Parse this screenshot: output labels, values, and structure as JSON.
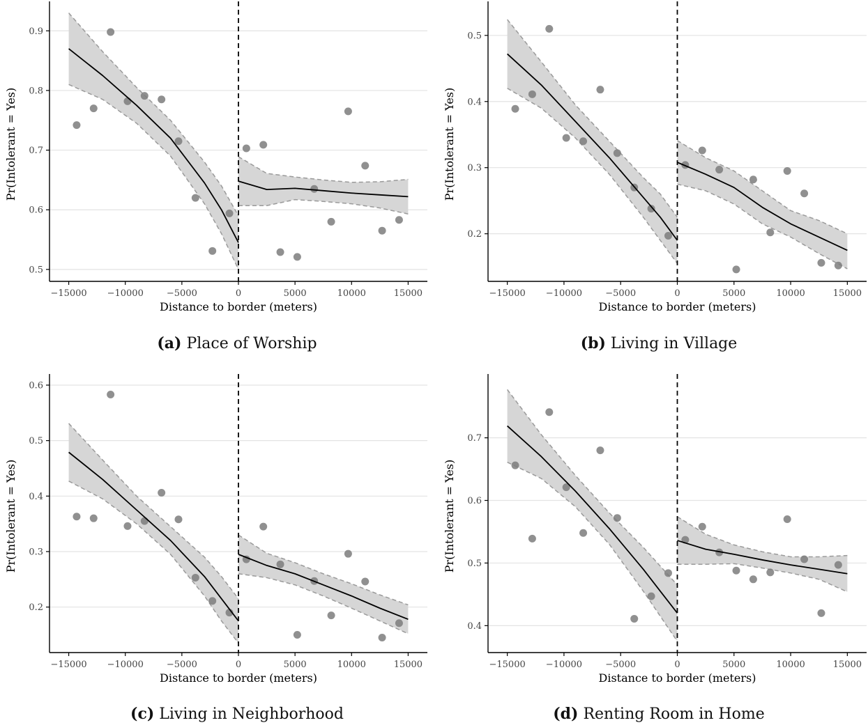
{
  "chart_data": [
    {
      "type": "scatter",
      "panel_label": "(a)",
      "caption": "Place of Worship",
      "xlabel": "Distance to border (meters)",
      "ylabel": "Pr(Intolerant = Yes)",
      "xlim": [
        -16700,
        16700
      ],
      "ylim": [
        0.48,
        0.94
      ],
      "xticks": [
        -15000,
        -10000,
        -5000,
        0,
        5000,
        10000,
        15000
      ],
      "yticks": [
        0.5,
        0.6,
        0.7,
        0.8,
        0.9
      ],
      "ytick_labels": [
        "0.5",
        "0.6",
        "0.7",
        "0.8",
        "0.9"
      ],
      "cutoff": 0,
      "points": [
        [
          -14300,
          0.742
        ],
        [
          -12800,
          0.77
        ],
        [
          -11300,
          0.898
        ],
        [
          -9800,
          0.782
        ],
        [
          -8300,
          0.791
        ],
        [
          -6800,
          0.785
        ],
        [
          -5300,
          0.715
        ],
        [
          -3800,
          0.62
        ],
        [
          -2300,
          0.531
        ],
        [
          -800,
          0.594
        ],
        [
          700,
          0.703
        ],
        [
          2200,
          0.709
        ],
        [
          3700,
          0.529
        ],
        [
          5200,
          0.521
        ],
        [
          6700,
          0.635
        ],
        [
          8200,
          0.58
        ],
        [
          9700,
          0.765
        ],
        [
          11200,
          0.674
        ],
        [
          12700,
          0.565
        ],
        [
          14200,
          0.583
        ]
      ],
      "left_fit": {
        "x": [
          -15000,
          -12000,
          -9000,
          -6000,
          -3000,
          -1500,
          0
        ],
        "y": [
          0.87,
          0.825,
          0.775,
          0.72,
          0.645,
          0.6,
          0.545
        ],
        "lower": [
          0.81,
          0.785,
          0.745,
          0.69,
          0.61,
          0.56,
          0.5
        ],
        "upper": [
          0.93,
          0.865,
          0.805,
          0.75,
          0.68,
          0.64,
          0.59
        ]
      },
      "right_fit": {
        "x": [
          0,
          2500,
          5000,
          7500,
          10000,
          12500,
          15000
        ],
        "y": [
          0.648,
          0.634,
          0.636,
          0.632,
          0.628,
          0.625,
          0.622
        ],
        "lower": [
          0.607,
          0.607,
          0.617,
          0.614,
          0.61,
          0.603,
          0.593
        ],
        "upper": [
          0.689,
          0.661,
          0.655,
          0.65,
          0.646,
          0.647,
          0.651
        ]
      }
    },
    {
      "type": "scatter",
      "panel_label": "(b)",
      "caption": "Living in Village",
      "xlabel": "Distance to border (meters)",
      "ylabel": "Pr(Intolerant = Yes)",
      "xlim": [
        -16700,
        16700
      ],
      "ylim": [
        0.128,
        0.543
      ],
      "xticks": [
        -15000,
        -10000,
        -5000,
        0,
        5000,
        10000,
        15000
      ],
      "yticks": [
        0.2,
        0.3,
        0.4,
        0.5
      ],
      "ytick_labels": [
        "0.2",
        "0.3",
        "0.4",
        "0.5"
      ],
      "cutoff": 0,
      "points": [
        [
          -14300,
          0.389
        ],
        [
          -12800,
          0.411
        ],
        [
          -11300,
          0.51
        ],
        [
          -9800,
          0.345
        ],
        [
          -8300,
          0.34
        ],
        [
          -6800,
          0.418
        ],
        [
          -5300,
          0.322
        ],
        [
          -3800,
          0.27
        ],
        [
          -2300,
          0.238
        ],
        [
          -800,
          0.197
        ],
        [
          700,
          0.304
        ],
        [
          2200,
          0.326
        ],
        [
          3700,
          0.297
        ],
        [
          5200,
          0.146
        ],
        [
          6700,
          0.282
        ],
        [
          8200,
          0.202
        ],
        [
          9700,
          0.295
        ],
        [
          11200,
          0.261
        ],
        [
          12700,
          0.156
        ],
        [
          14200,
          0.152
        ]
      ],
      "left_fit": {
        "x": [
          -15000,
          -12000,
          -9000,
          -6000,
          -3000,
          -1500,
          0
        ],
        "y": [
          0.472,
          0.425,
          0.37,
          0.315,
          0.255,
          0.225,
          0.19
        ],
        "lower": [
          0.42,
          0.39,
          0.345,
          0.29,
          0.225,
          0.19,
          0.155
        ],
        "upper": [
          0.524,
          0.46,
          0.395,
          0.34,
          0.285,
          0.26,
          0.225
        ]
      },
      "right_fit": {
        "x": [
          0,
          2500,
          5000,
          7500,
          10000,
          12500,
          15000
        ],
        "y": [
          0.308,
          0.29,
          0.27,
          0.24,
          0.215,
          0.195,
          0.175
        ],
        "lower": [
          0.275,
          0.265,
          0.245,
          0.215,
          0.195,
          0.17,
          0.147
        ],
        "upper": [
          0.341,
          0.315,
          0.295,
          0.265,
          0.235,
          0.22,
          0.2
        ]
      }
    },
    {
      "type": "scatter",
      "panel_label": "(c)",
      "caption": "Living in Neighborhood",
      "xlabel": "Distance to border (meters)",
      "ylabel": "Pr(Intolerant = Yes)",
      "xlim": [
        -16700,
        16700
      ],
      "ylim": [
        0.118,
        0.61
      ],
      "xticks": [
        -15000,
        -10000,
        -5000,
        0,
        5000,
        10000,
        15000
      ],
      "yticks": [
        0.2,
        0.3,
        0.4,
        0.5,
        0.6
      ],
      "ytick_labels": [
        "0.2",
        "0.3",
        "0.4",
        "0.5",
        "0.6"
      ],
      "cutoff": 0,
      "points": [
        [
          -14300,
          0.363
        ],
        [
          -12800,
          0.36
        ],
        [
          -11300,
          0.583
        ],
        [
          -9800,
          0.346
        ],
        [
          -8300,
          0.355
        ],
        [
          -6800,
          0.406
        ],
        [
          -5300,
          0.358
        ],
        [
          -3800,
          0.253
        ],
        [
          -2300,
          0.211
        ],
        [
          -800,
          0.19
        ],
        [
          700,
          0.286
        ],
        [
          2200,
          0.345
        ],
        [
          3700,
          0.277
        ],
        [
          5200,
          0.15
        ],
        [
          6700,
          0.247
        ],
        [
          8200,
          0.185
        ],
        [
          9700,
          0.296
        ],
        [
          11200,
          0.246
        ],
        [
          12700,
          0.145
        ],
        [
          14200,
          0.171
        ]
      ],
      "left_fit": {
        "x": [
          -15000,
          -12000,
          -9000,
          -6000,
          -3000,
          -1500,
          0
        ],
        "y": [
          0.479,
          0.43,
          0.375,
          0.32,
          0.255,
          0.215,
          0.175
        ],
        "lower": [
          0.427,
          0.395,
          0.35,
          0.295,
          0.22,
          0.175,
          0.135
        ],
        "upper": [
          0.531,
          0.465,
          0.4,
          0.345,
          0.29,
          0.255,
          0.215
        ]
      },
      "right_fit": {
        "x": [
          0,
          2500,
          5000,
          7500,
          10000,
          12500,
          15000
        ],
        "y": [
          0.295,
          0.275,
          0.26,
          0.24,
          0.22,
          0.198,
          0.178
        ],
        "lower": [
          0.26,
          0.253,
          0.24,
          0.22,
          0.198,
          0.175,
          0.152
        ],
        "upper": [
          0.33,
          0.297,
          0.28,
          0.26,
          0.242,
          0.222,
          0.204
        ]
      }
    },
    {
      "type": "scatter",
      "panel_label": "(d)",
      "caption": "Renting Room in Home",
      "xlabel": "Distance to border (meters)",
      "ylabel": "Pr(Intolerant = Yes)",
      "xlim": [
        -16700,
        16700
      ],
      "ylim": [
        0.357,
        0.793
      ],
      "xticks": [
        -15000,
        -10000,
        -5000,
        0,
        5000,
        10000,
        15000
      ],
      "yticks": [
        0.4,
        0.5,
        0.6,
        0.7
      ],
      "ytick_labels": [
        "0.4",
        "0.5",
        "0.6",
        "0.7"
      ],
      "cutoff": 0,
      "points": [
        [
          -14300,
          0.656
        ],
        [
          -12800,
          0.539
        ],
        [
          -11300,
          0.741
        ],
        [
          -9800,
          0.621
        ],
        [
          -8300,
          0.548
        ],
        [
          -6800,
          0.68
        ],
        [
          -5300,
          0.572
        ],
        [
          -3800,
          0.411
        ],
        [
          -2300,
          0.447
        ],
        [
          -800,
          0.484
        ],
        [
          700,
          0.537
        ],
        [
          2200,
          0.558
        ],
        [
          3700,
          0.517
        ],
        [
          5200,
          0.488
        ],
        [
          6700,
          0.474
        ],
        [
          8200,
          0.485
        ],
        [
          9700,
          0.57
        ],
        [
          11200,
          0.506
        ],
        [
          12700,
          0.42
        ],
        [
          14200,
          0.497
        ]
      ],
      "left_fit": {
        "x": [
          -15000,
          -12000,
          -9000,
          -6000,
          -3000,
          -1500,
          0
        ],
        "y": [
          0.719,
          0.67,
          0.615,
          0.555,
          0.49,
          0.455,
          0.42
        ],
        "lower": [
          0.661,
          0.635,
          0.59,
          0.53,
          0.455,
          0.415,
          0.375
        ],
        "upper": [
          0.777,
          0.705,
          0.64,
          0.58,
          0.525,
          0.495,
          0.465
        ]
      },
      "right_fit": {
        "x": [
          0,
          2500,
          5000,
          7500,
          10000,
          12500,
          15000
        ],
        "y": [
          0.536,
          0.522,
          0.514,
          0.505,
          0.497,
          0.49,
          0.483
        ],
        "lower": [
          0.498,
          0.498,
          0.499,
          0.492,
          0.484,
          0.474,
          0.454
        ],
        "upper": [
          0.574,
          0.546,
          0.529,
          0.518,
          0.51,
          0.51,
          0.512
        ]
      }
    }
  ]
}
